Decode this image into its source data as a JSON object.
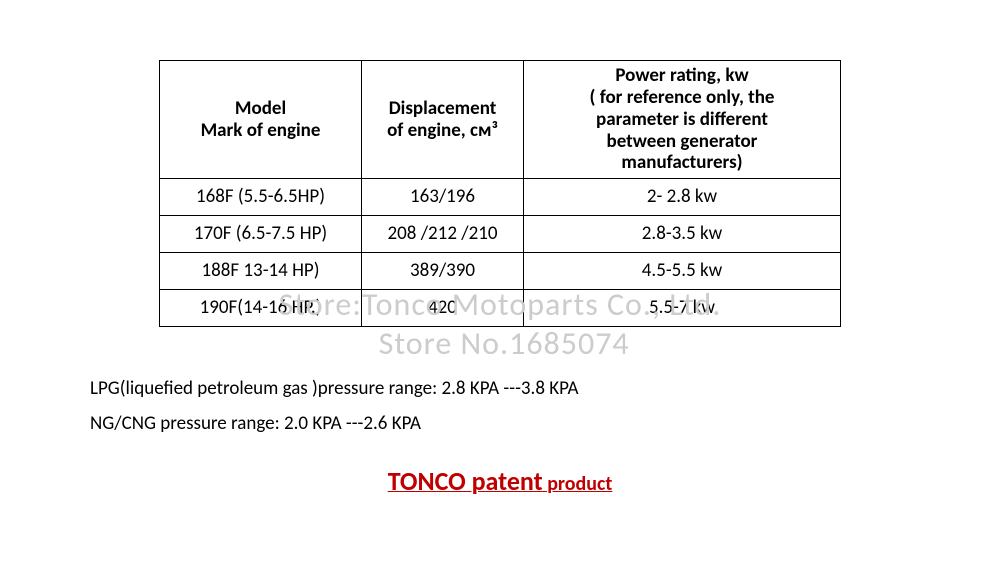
{
  "table": {
    "columns": [
      {
        "line1": "Model",
        "line2": "Mark of engine"
      },
      {
        "line1": "Displacement",
        "line2": "of engine, см³"
      },
      {
        "line1": "Power rating, kw",
        "line2": "( for reference only,    the",
        "line3": "parameter is different",
        "line4": "between    generator",
        "line5": "manufacturers)"
      }
    ],
    "rows": [
      {
        "model": "168F (5.5-6.5HP)",
        "disp": "163/196",
        "power": "2- 2.8    kw"
      },
      {
        "model": "170F (6.5-7.5 HP)",
        "disp": "208 /212 /210",
        "power": "2.8-3.5 kw"
      },
      {
        "model": "188F 13-14 HP)",
        "disp": "389/390",
        "power": "4.5-5.5 kw"
      },
      {
        "model": "190F(14-16 HP.)",
        "disp": "420",
        "power": "5.5-7    kw"
      }
    ]
  },
  "watermark": "Store:Tonco Motoparts Co., Ltd.\n Store No.1685074",
  "notes": {
    "lpg": "LPG(liquefied petroleum gas )pressure range: 2.8 KPA ---3.8 KPA",
    "ng": "NG/CNG pressure range: 2.0 KPA ---2.6 KPA"
  },
  "patent": {
    "big": "TONCO patent",
    "small": " product"
  },
  "colors": {
    "border": "#000000",
    "text": "#000000",
    "watermark": "#cccccc",
    "patent": "#c00000",
    "background": "#ffffff"
  },
  "col_widths": {
    "model": 185,
    "disp": 145,
    "power": 300
  }
}
